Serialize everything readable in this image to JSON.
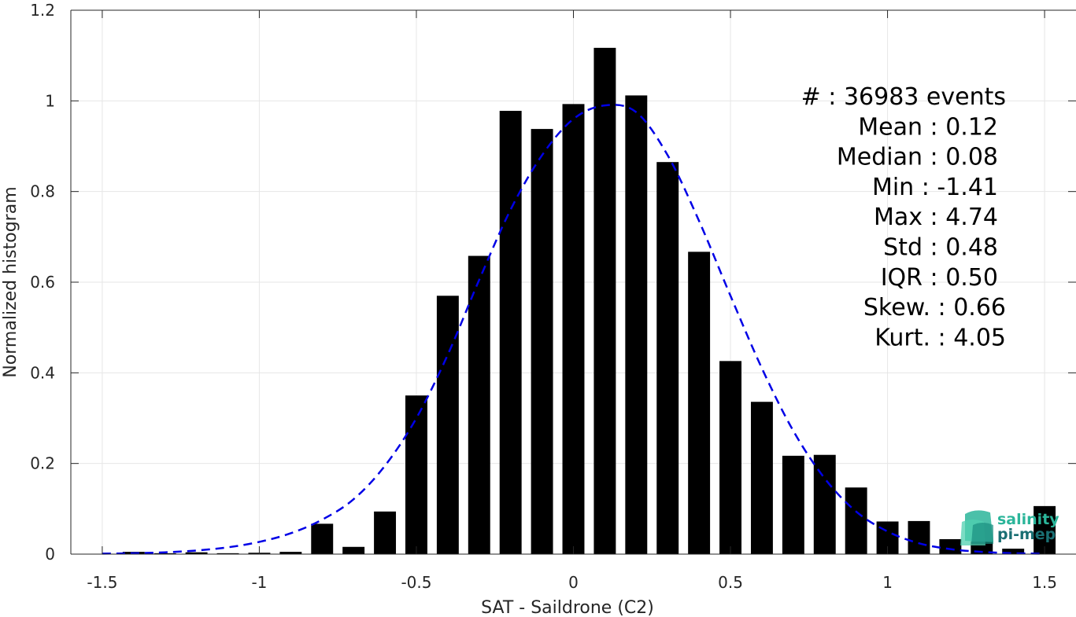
{
  "chart_data": {
    "type": "bar",
    "xlabel": "SAT - Saildrone (C2)",
    "ylabel": "Normalized histogram",
    "xlim": [
      -1.6,
      1.6
    ],
    "ylim": [
      0,
      1.2
    ],
    "xticks": [
      -1.5,
      -1,
      -0.5,
      0,
      0.5,
      1,
      1.5
    ],
    "xtick_labels": [
      "-1.5",
      "-1",
      "-0.5",
      "0",
      "0.5",
      "1",
      "1.5"
    ],
    "yticks": [
      0,
      0.2,
      0.4,
      0.6,
      0.8,
      1.0,
      1.2
    ],
    "ytick_labels": [
      "0",
      "0.2",
      "0.4",
      "0.6",
      "0.8",
      "1",
      "1.2"
    ],
    "grid": true,
    "bar_color": "#000000",
    "bars": {
      "x": [
        -1.4,
        -1.3,
        -1.2,
        -1.1,
        -1.0,
        -0.9,
        -0.8,
        -0.7,
        -0.6,
        -0.5,
        -0.4,
        -0.3,
        -0.2,
        -0.1,
        0.0,
        0.1,
        0.2,
        0.3,
        0.4,
        0.5,
        0.6,
        0.7,
        0.8,
        0.9,
        1.0,
        1.1,
        1.2,
        1.3,
        1.4,
        1.5
      ],
      "values": [
        0.005,
        0.002,
        0.004,
        0.002,
        0.003,
        0.005,
        0.067,
        0.016,
        0.094,
        0.35,
        0.57,
        0.658,
        0.978,
        0.938,
        0.993,
        1.117,
        1.012,
        0.865,
        0.667,
        0.426,
        0.336,
        0.217,
        0.219,
        0.147,
        0.072,
        0.073,
        0.033,
        0.028,
        0.012,
        0.106
      ]
    },
    "fit_curve": {
      "style": "dashed",
      "color": "#0000e6",
      "x": [
        -1.5,
        -1.4,
        -1.3,
        -1.2,
        -1.1,
        -1.0,
        -0.9,
        -0.8,
        -0.7,
        -0.6,
        -0.5,
        -0.4,
        -0.3,
        -0.2,
        -0.1,
        0.0,
        0.1,
        0.2,
        0.3,
        0.4,
        0.5,
        0.6,
        0.7,
        0.8,
        0.9,
        1.0,
        1.1,
        1.2,
        1.3,
        1.4,
        1.5
      ],
      "y": [
        0.001,
        0.002,
        0.004,
        0.008,
        0.015,
        0.027,
        0.046,
        0.076,
        0.121,
        0.195,
        0.3,
        0.44,
        0.605,
        0.76,
        0.88,
        0.96,
        0.99,
        0.975,
        0.88,
        0.735,
        0.57,
        0.41,
        0.272,
        0.167,
        0.094,
        0.05,
        0.024,
        0.011,
        0.005,
        0.002,
        0.001
      ]
    },
    "stats": [
      {
        "label": "#  ",
        "value": ": 36983 events"
      },
      {
        "label": "Mean ",
        "value": ": 0.12"
      },
      {
        "label": "Median ",
        "value": ": 0.08"
      },
      {
        "label": "Min ",
        "value": ": -1.41"
      },
      {
        "label": "Max ",
        "value": ": 4.74"
      },
      {
        "label": "Std ",
        "value": ": 0.48"
      },
      {
        "label": "IQR ",
        "value": ": 0.50"
      },
      {
        "label": "Skew. ",
        "value": ": 0.66"
      },
      {
        "label": "Kurt. ",
        "value": ": 4.05"
      }
    ],
    "logo": {
      "line1": "salinity",
      "line2": "pi-mep",
      "color1": "#2bb59a",
      "color2": "#1a6f73"
    }
  }
}
